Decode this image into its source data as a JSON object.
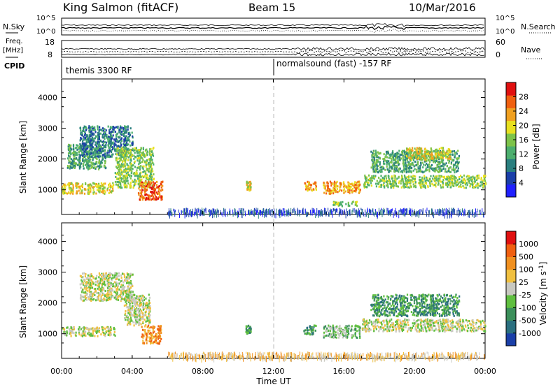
{
  "header": {
    "station": "King Salmon (fitACF)",
    "beam": "Beam 15",
    "date": "10/Mar/2016"
  },
  "noise_panel": {
    "left_label": "N.Sky",
    "right_label": "N.Search",
    "left_ticks": [
      "10^5",
      "10^0"
    ],
    "right_ticks": [
      "10^5",
      "10^0"
    ]
  },
  "freq_panel": {
    "left_label_1": "Freq.",
    "left_label_2": "[MHz]",
    "right_label": "Nave",
    "left_ticks": [
      "18",
      "8"
    ],
    "right_ticks": [
      "60",
      "0"
    ]
  },
  "cpid": {
    "label": "CPID",
    "segments": [
      "themis 3300 RF",
      "normalsound (fast) -157 RF"
    ],
    "switch_time": "12:00"
  },
  "chart_data": [
    {
      "type": "heatmap",
      "name": "power",
      "ylabel": "Slant Range [km]",
      "ylim": [
        200,
        4600
      ],
      "y_ticks": [
        1000,
        2000,
        3000,
        4000
      ],
      "xlim_hours": [
        0,
        24
      ],
      "colorbar": {
        "label": "Power [dB]",
        "ticks": [
          "28",
          "24",
          "20",
          "16",
          "12",
          "8",
          "4"
        ],
        "colors": [
          "#2020ff",
          "#1a3fa8",
          "#2a7f7f",
          "#4cae6e",
          "#7dc34a",
          "#e8e020",
          "#f0a020",
          "#f06010",
          "#e01010"
        ]
      },
      "regions": [
        {
          "t": [
            0.0,
            2.9
          ],
          "r": [
            900,
            1250
          ],
          "level": 5
        },
        {
          "t": [
            0.3,
            2.5
          ],
          "r": [
            1700,
            2500
          ],
          "level": 3
        },
        {
          "t": [
            1.0,
            4.0
          ],
          "r": [
            2100,
            3100
          ],
          "level": 2
        },
        {
          "t": [
            3.0,
            5.2
          ],
          "r": [
            1100,
            2400
          ],
          "level": 4
        },
        {
          "t": [
            4.3,
            5.7
          ],
          "r": [
            700,
            1300
          ],
          "level": 7
        },
        {
          "t": [
            10.4,
            10.7
          ],
          "r": [
            1000,
            1300
          ],
          "level": 5
        },
        {
          "t": [
            13.7,
            14.4
          ],
          "r": [
            1000,
            1300
          ],
          "level": 6
        },
        {
          "t": [
            14.8,
            16.9
          ],
          "r": [
            900,
            1300
          ],
          "level": 6
        },
        {
          "t": [
            15.2,
            16.7
          ],
          "r": [
            500,
            650
          ],
          "level": 4
        },
        {
          "t": [
            17.1,
            24.0
          ],
          "r": [
            1100,
            1500
          ],
          "level": 4
        },
        {
          "t": [
            17.5,
            22.5
          ],
          "r": [
            1600,
            2300
          ],
          "level": 3
        },
        {
          "t": [
            19.5,
            22.0
          ],
          "r": [
            2000,
            2400
          ],
          "level": 5
        },
        {
          "t": [
            6.0,
            24.0
          ],
          "r": [
            250,
            420
          ],
          "level": 1
        }
      ]
    },
    {
      "type": "heatmap",
      "name": "velocity",
      "ylabel": "Slant Range [km]",
      "ylim": [
        200,
        4600
      ],
      "y_ticks": [
        1000,
        2000,
        3000,
        4000
      ],
      "xlim_hours": [
        0,
        24
      ],
      "xlabel": "Time UT",
      "x_ticks": [
        "00:00",
        "04:00",
        "08:00",
        "12:00",
        "16:00",
        "20:00",
        "00:00"
      ],
      "colorbar": {
        "label": "Velocity [m s^-1]",
        "ticks": [
          "1000",
          "500",
          "100",
          "25",
          "-25",
          "-100",
          "-500",
          "-1000"
        ],
        "colors": [
          "#1a3fa8",
          "#2a6f7f",
          "#3b8f5a",
          "#5fbf3f",
          "#c8c8c0",
          "#f0c040",
          "#f09020",
          "#f06010",
          "#e01010"
        ]
      },
      "regions": [
        {
          "t": [
            0.0,
            3.0
          ],
          "r": [
            950,
            1250
          ],
          "level": 4
        },
        {
          "t": [
            1.0,
            4.0
          ],
          "r": [
            2100,
            3000
          ],
          "level": 4
        },
        {
          "t": [
            3.5,
            5.0
          ],
          "r": [
            1300,
            2300
          ],
          "level": 4
        },
        {
          "t": [
            4.5,
            5.6
          ],
          "r": [
            700,
            1300
          ],
          "level": 6
        },
        {
          "t": [
            10.4,
            10.7
          ],
          "r": [
            1000,
            1300
          ],
          "level": 2
        },
        {
          "t": [
            13.7,
            14.4
          ],
          "r": [
            1000,
            1300
          ],
          "level": 2
        },
        {
          "t": [
            14.8,
            16.9
          ],
          "r": [
            900,
            1300
          ],
          "level": 3
        },
        {
          "t": [
            17.0,
            24.0
          ],
          "r": [
            1100,
            1500
          ],
          "level": 4
        },
        {
          "t": [
            17.5,
            22.5
          ],
          "r": [
            1600,
            2300
          ],
          "level": 2
        },
        {
          "t": [
            6.0,
            24.0
          ],
          "r": [
            250,
            420
          ],
          "level": 5
        }
      ]
    }
  ]
}
